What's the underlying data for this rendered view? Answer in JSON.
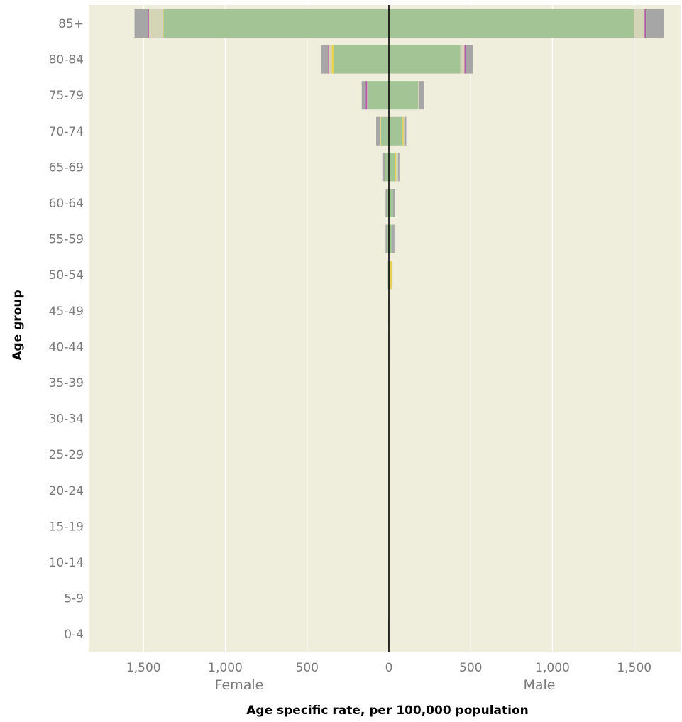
{
  "chart_data": {
    "type": "bar",
    "subtype": "population-pyramid-stacked",
    "title": "",
    "xlabel": "Age specific rate, per 100,000 population",
    "ylabel": "Age group",
    "female_label": "Female",
    "male_label": "Male",
    "xlim": [
      -1850,
      1850
    ],
    "xticks": [
      -1500,
      -1000,
      -500,
      0,
      500,
      1000,
      1500
    ],
    "xtick_labels": [
      "1,500",
      "1,000",
      "500",
      "0",
      "500",
      "1,000",
      "1,500"
    ],
    "grid": true,
    "categories": [
      "85+",
      "80-84",
      "75-79",
      "70-74",
      "65-69",
      "60-64",
      "55-59",
      "50-54",
      "45-49",
      "40-44",
      "35-39",
      "30-34",
      "25-29",
      "20-24",
      "15-19",
      "10-14",
      "5-9",
      "0-4"
    ],
    "segment_colors": [
      "#a3c495",
      "#ead34c",
      "#d4d4b6",
      "#b35ba3",
      "#a6a6a6"
    ],
    "female": [
      [
        1378,
        5,
        84,
        5,
        83
      ],
      [
        337,
        12,
        20,
        3,
        40
      ],
      [
        126,
        3,
        4,
        8,
        25
      ],
      [
        48,
        2,
        3,
        0,
        25
      ],
      [
        26,
        0,
        0,
        0,
        14
      ],
      [
        12,
        0,
        0,
        0,
        8
      ],
      [
        12,
        0,
        0,
        0,
        8
      ],
      [
        4,
        0,
        0,
        0,
        2
      ],
      [
        2,
        0,
        0,
        0,
        1
      ],
      [
        2,
        0,
        0,
        0,
        1
      ],
      [
        1,
        0,
        0,
        0,
        1
      ],
      [
        1,
        0,
        0,
        0,
        1
      ],
      [
        0,
        0,
        0,
        0,
        0
      ],
      [
        0,
        0,
        0,
        0,
        0
      ],
      [
        0,
        0,
        0,
        0,
        0
      ],
      [
        0,
        0,
        0,
        0,
        0
      ],
      [
        0,
        0,
        0,
        0,
        0
      ],
      [
        2,
        0,
        0,
        0,
        2
      ]
    ],
    "male": [
      [
        1497,
        0,
        66,
        8,
        110
      ],
      [
        436,
        0,
        26,
        8,
        45
      ],
      [
        178,
        0,
        6,
        0,
        32
      ],
      [
        84,
        6,
        4,
        0,
        12
      ],
      [
        36,
        8,
        12,
        0,
        8
      ],
      [
        26,
        0,
        0,
        0,
        12
      ],
      [
        22,
        0,
        0,
        0,
        12
      ],
      [
        5,
        12,
        0,
        0,
        5
      ],
      [
        1,
        0,
        0,
        0,
        1
      ],
      [
        1,
        0,
        0,
        0,
        1
      ],
      [
        1,
        0,
        0,
        0,
        1
      ],
      [
        1,
        0,
        0,
        0,
        1
      ],
      [
        0,
        0,
        0,
        0,
        0
      ],
      [
        0,
        0,
        0,
        0,
        0
      ],
      [
        0,
        0,
        0,
        0,
        0
      ],
      [
        0,
        0,
        0,
        0,
        0
      ],
      [
        0,
        0,
        0,
        0,
        0
      ],
      [
        1,
        0,
        0,
        0,
        1
      ]
    ]
  },
  "colors": {
    "panel_background": "#efeddc",
    "gridline": "#ffffff",
    "zero_line": "#000000"
  }
}
